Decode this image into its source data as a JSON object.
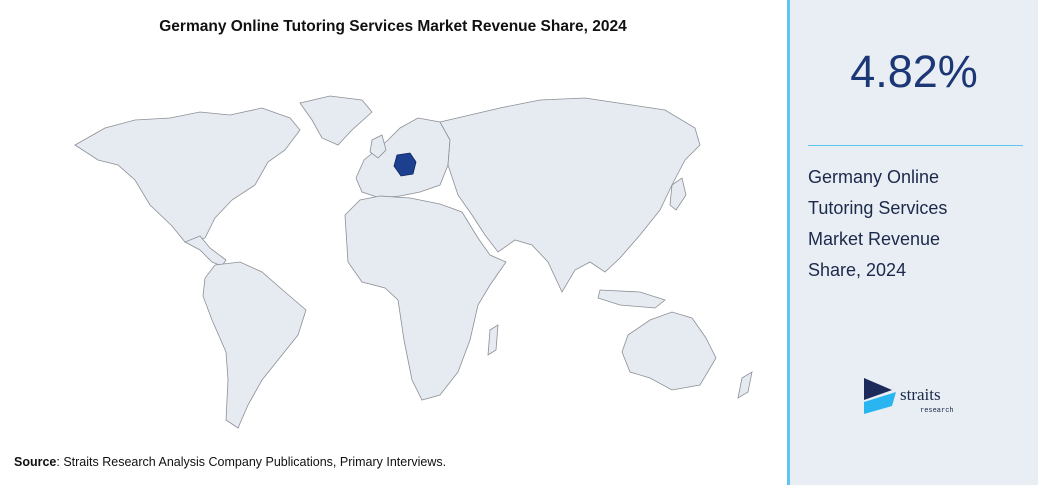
{
  "title": "Germany Online Tutoring Services Market Revenue Share, 2024",
  "stat": "4.82%",
  "description": "Germany Online Tutoring Services Market Revenue Share, 2024",
  "source": {
    "label": "Source",
    "text": ": Straits Research Analysis Company Publications, Primary Interviews."
  },
  "logo": {
    "name": "straits",
    "tagline": "research"
  }
}
